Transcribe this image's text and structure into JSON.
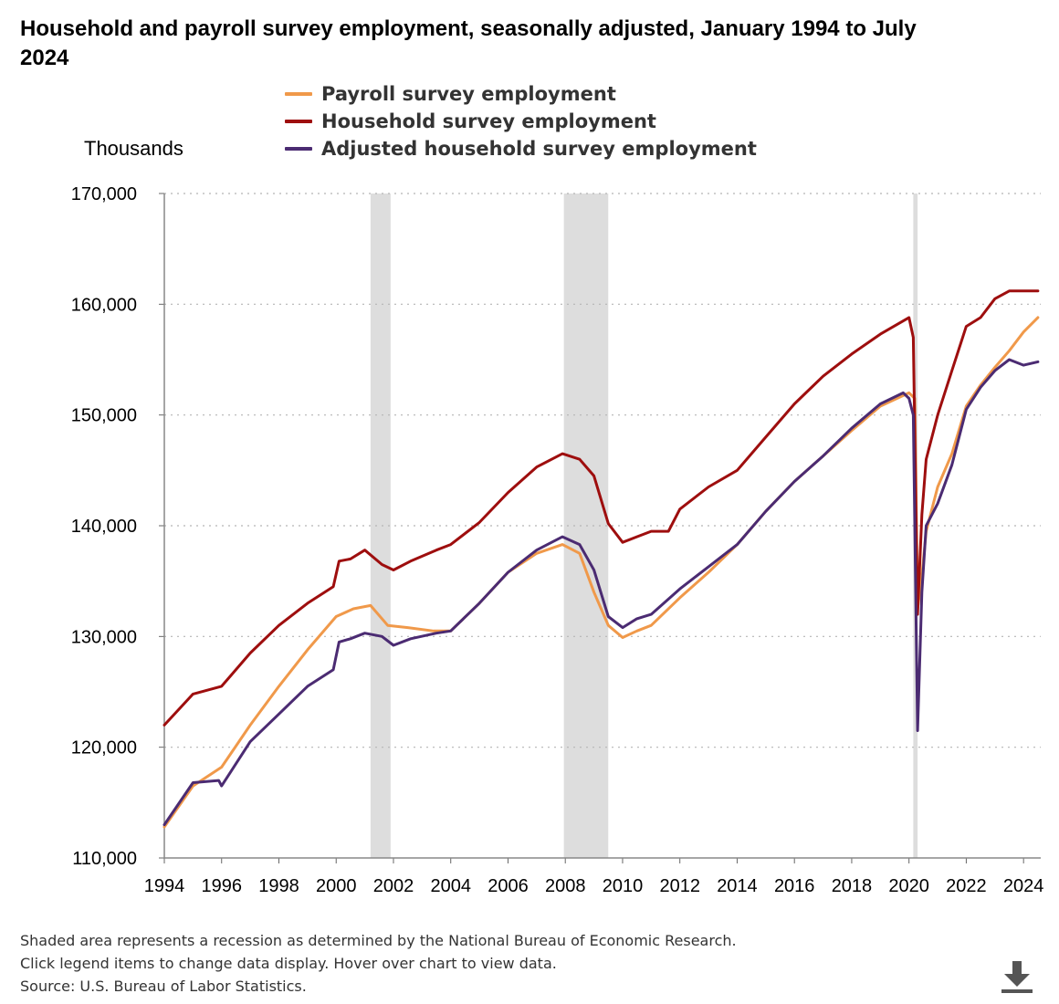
{
  "title": "Household and payroll survey employment, seasonally adjusted, January 1994 to July 2024",
  "legend": [
    {
      "label": "Payroll survey employment",
      "color": "#f0994a"
    },
    {
      "label": "Household survey employment",
      "color": "#9e0e0e"
    },
    {
      "label": "Adjusted household survey employment",
      "color": "#4b2b72"
    }
  ],
  "notes": [
    "Shaded area represents a recession as determined by the National Bureau of Economic Research.",
    "Click legend items to change data display. Hover over chart to view data.",
    "Source: U.S. Bureau of Labor Statistics."
  ],
  "download_icon": "download-icon",
  "chart_data": {
    "type": "line",
    "ylabel": "Thousands",
    "ylim": [
      110000,
      170000
    ],
    "xlim": [
      1994.0,
      2024.6
    ],
    "yticks": [
      110000,
      120000,
      130000,
      140000,
      150000,
      160000,
      170000
    ],
    "ytick_labels": [
      "110,000",
      "120,000",
      "130,000",
      "140,000",
      "150,000",
      "160,000",
      "170,000"
    ],
    "xticks": [
      1994,
      1996,
      1998,
      2000,
      2002,
      2004,
      2006,
      2008,
      2010,
      2012,
      2014,
      2016,
      2018,
      2020,
      2022,
      2024
    ],
    "xtick_labels": [
      "1994",
      "1996",
      "1998",
      "2000",
      "2002",
      "2004",
      "2006",
      "2008",
      "2010",
      "2012",
      "2014",
      "2016",
      "2018",
      "2020",
      "2022",
      "2024"
    ],
    "grid": true,
    "legend_position": "top",
    "recessions": [
      [
        2001.2,
        2001.9
      ],
      [
        2007.95,
        2009.5
      ],
      [
        2020.15,
        2020.3
      ]
    ],
    "recession_color": "#dddddd",
    "series": [
      {
        "name": "Payroll survey employment",
        "color": "#f0994a",
        "x": [
          1994.0,
          1995.0,
          1996.0,
          1997.0,
          1998.0,
          1999.0,
          2000.0,
          2000.6,
          2001.2,
          2001.8,
          2002.5,
          2003.4,
          2004.0,
          2005.0,
          2006.0,
          2007.0,
          2007.9,
          2008.5,
          2009.0,
          2009.5,
          2010.0,
          2010.5,
          2011.0,
          2012.0,
          2013.0,
          2014.0,
          2015.0,
          2016.0,
          2017.0,
          2018.0,
          2019.0,
          2020.0,
          2020.2,
          2020.3,
          2020.45,
          2020.6,
          2021.0,
          2021.5,
          2022.0,
          2022.5,
          2023.0,
          2023.5,
          2024.0,
          2024.5
        ],
        "y": [
          112800,
          116500,
          118200,
          122000,
          125500,
          128800,
          131800,
          132500,
          132800,
          131000,
          130800,
          130500,
          130500,
          133000,
          135800,
          137500,
          138300,
          137500,
          134000,
          131000,
          129900,
          130500,
          131000,
          133500,
          135800,
          138300,
          141300,
          144000,
          146300,
          148600,
          150800,
          152000,
          151500,
          132500,
          135500,
          139500,
          143500,
          146500,
          150800,
          152700,
          154300,
          155800,
          157500,
          158800
        ]
      },
      {
        "name": "Household survey employment",
        "color": "#9e0e0e",
        "x": [
          1994.0,
          1995.0,
          1996.0,
          1997.0,
          1998.0,
          1999.0,
          1999.9,
          2000.1,
          2000.5,
          2001.0,
          2001.6,
          2002.0,
          2002.6,
          2003.5,
          2004.0,
          2005.0,
          2006.0,
          2007.0,
          2007.9,
          2008.5,
          2009.0,
          2009.5,
          2010.0,
          2010.5,
          2011.0,
          2011.6,
          2012.0,
          2013.0,
          2014.0,
          2015.0,
          2016.0,
          2017.0,
          2018.0,
          2019.0,
          2020.0,
          2020.15,
          2020.3,
          2020.45,
          2020.6,
          2021.0,
          2021.5,
          2022.0,
          2022.5,
          2023.0,
          2023.5,
          2024.0,
          2024.5
        ],
        "y": [
          122000,
          124800,
          125500,
          128500,
          131000,
          133000,
          134500,
          136800,
          137000,
          137800,
          136500,
          136000,
          136800,
          137800,
          138300,
          140300,
          143000,
          145300,
          146500,
          146000,
          144500,
          140200,
          138500,
          139000,
          139500,
          139500,
          141500,
          143500,
          145000,
          148000,
          151000,
          153500,
          155500,
          157300,
          158800,
          157000,
          132000,
          141000,
          146000,
          150000,
          154000,
          158000,
          158800,
          160500,
          161200,
          161200,
          161200
        ]
      },
      {
        "name": "Adjusted household survey employment",
        "color": "#4b2b72",
        "x": [
          1994.0,
          1995.0,
          1995.9,
          1996.0,
          1997.0,
          1998.0,
          1999.0,
          1999.9,
          2000.1,
          2000.5,
          2001.0,
          2001.6,
          2002.0,
          2002.6,
          2003.5,
          2004.0,
          2005.0,
          2006.0,
          2007.0,
          2007.9,
          2008.5,
          2009.0,
          2009.5,
          2010.0,
          2010.5,
          2011.0,
          2012.0,
          2013.0,
          2014.0,
          2015.0,
          2016.0,
          2017.0,
          2018.0,
          2019.0,
          2019.8,
          2020.0,
          2020.15,
          2020.3,
          2020.45,
          2020.6,
          2021.0,
          2021.5,
          2022.0,
          2022.5,
          2023.0,
          2023.5,
          2024.0,
          2024.5
        ],
        "y": [
          113000,
          116800,
          117000,
          116500,
          120500,
          123000,
          125500,
          127000,
          129500,
          129800,
          130300,
          130000,
          129200,
          129800,
          130300,
          130500,
          133000,
          135800,
          137800,
          139000,
          138300,
          136000,
          131800,
          130800,
          131600,
          132000,
          134300,
          136300,
          138300,
          141300,
          144000,
          146300,
          148800,
          151000,
          152000,
          151500,
          150000,
          121500,
          134000,
          140000,
          142000,
          145500,
          150500,
          152500,
          154000,
          155000,
          154500,
          154800
        ]
      }
    ]
  }
}
